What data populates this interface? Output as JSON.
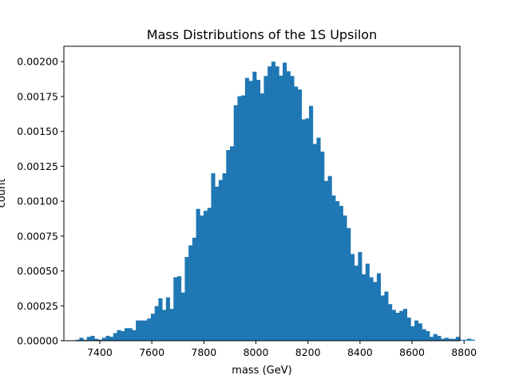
{
  "chart_data": {
    "type": "bar",
    "title": "Mass Distributions of the 1S Upsilon",
    "xlabel": "mass (GeV)",
    "ylabel": "count",
    "xlim": [
      7262,
      8784
    ],
    "ylim": [
      0,
      0.00211
    ],
    "bar_color": "#1f77b4",
    "grid": false,
    "legend": "none",
    "x_ticks": [
      7400,
      7600,
      7800,
      8000,
      8200,
      8400,
      8600,
      8800
    ],
    "x_tick_labels": [
      "7400",
      "7600",
      "7800",
      "8000",
      "8200",
      "8400",
      "8600",
      "8800"
    ],
    "y_ticks": [
      0,
      0.00025,
      0.0005,
      0.00075,
      0.001,
      0.00125,
      0.0015,
      0.00175,
      0.002
    ],
    "y_tick_labels": [
      "0.00000",
      "0.00025",
      "0.00050",
      "0.00075",
      "0.00100",
      "0.00125",
      "0.00150",
      "0.00175",
      "0.00200"
    ],
    "bin_start": 7307,
    "bin_width": 14.47,
    "values": [
      7e-06,
      2.1e-05,
      7e-06,
      2.8e-05,
      3.5e-05,
      1.4e-05,
      7e-06,
      2.1e-05,
      3.5e-05,
      2.8e-05,
      5.5e-05,
      7.6e-05,
      6.9e-05,
      9e-05,
      9e-05,
      7.6e-05,
      0.000145,
      0.000145,
      0.000145,
      0.000159,
      0.000193,
      0.000248,
      0.000304,
      0.000221,
      0.000311,
      0.000228,
      0.000455,
      0.000462,
      0.000345,
      0.0006,
      0.000683,
      0.000738,
      0.000945,
      0.000897,
      0.000931,
      0.000952,
      0.0012,
      0.001104,
      0.001152,
      0.0012,
      0.001366,
      0.001393,
      0.001687,
      0.001752,
      0.001758,
      0.001883,
      0.001862,
      0.001928,
      0.001869,
      0.001772,
      0.001897,
      0.001966,
      0.002,
      0.001966,
      0.0019,
      0.001993,
      0.001931,
      0.001897,
      0.001821,
      0.0018,
      0.001586,
      0.001593,
      0.001683,
      0.00141,
      0.001455,
      0.001355,
      0.001145,
      0.00118,
      0.001041,
      0.001,
      0.000966,
      0.000897,
      0.000807,
      0.000621,
      0.000538,
      0.000635,
      0.000476,
      0.000552,
      0.000455,
      0.000421,
      0.000483,
      0.000324,
      0.000352,
      0.000262,
      0.000221,
      0.0002,
      0.000214,
      0.000228,
      0.000166,
      0.000104,
      0.000145,
      0.000124,
      8.3e-05,
      6.9e-05,
      2.8e-05,
      4.8e-05,
      3.5e-05,
      1.4e-05,
      2.1e-05,
      1.4e-05,
      1.4e-05,
      2.8e-05,
      7e-06,
      7e-06,
      1.4e-05,
      7e-06
    ]
  }
}
